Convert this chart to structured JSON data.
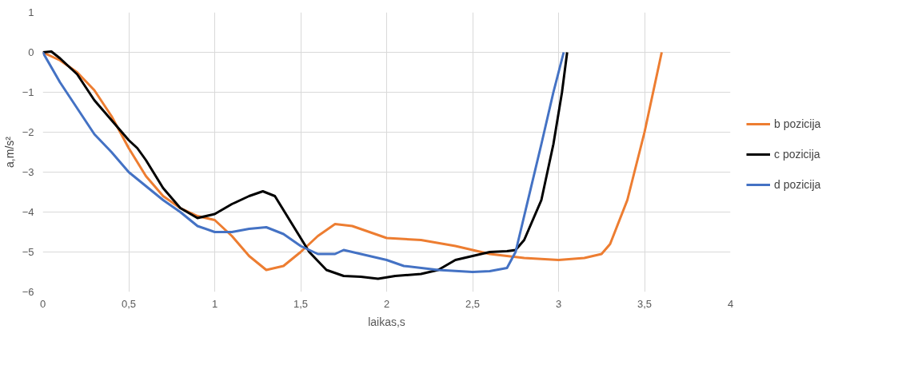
{
  "chart_data": {
    "type": "line",
    "xlabel": "laikas,s",
    "ylabel": "a,m/s²",
    "xlim": [
      0,
      4
    ],
    "xticks": [
      0,
      {
        "value": 0.5,
        "label": "0,5"
      },
      1,
      {
        "value": 1.5,
        "label": "1,5"
      },
      2,
      {
        "value": 2.5,
        "label": "2,5"
      },
      3,
      {
        "value": 3.5,
        "label": "3,5"
      },
      4
    ],
    "ylim": [
      -6,
      1
    ],
    "yticks": [
      -6,
      -5,
      -4,
      -3,
      -2,
      -1,
      0,
      1
    ],
    "grid": true,
    "legend": "right",
    "marker": "none",
    "line_style": "solid",
    "series": [
      {
        "name": "b pozicija",
        "color": "#ed7d31",
        "x": [
          0,
          0.1,
          0.2,
          0.3,
          0.4,
          0.5,
          0.6,
          0.7,
          0.8,
          0.9,
          1.0,
          1.1,
          1.2,
          1.3,
          1.4,
          1.5,
          1.6,
          1.7,
          1.8,
          1.9,
          2.0,
          2.2,
          2.4,
          2.6,
          2.8,
          3.0,
          3.15,
          3.25,
          3.3,
          3.4,
          3.5,
          3.6
        ],
        "values": [
          0,
          -0.2,
          -0.5,
          -0.95,
          -1.6,
          -2.4,
          -3.1,
          -3.6,
          -3.9,
          -4.1,
          -4.2,
          -4.6,
          -5.1,
          -5.45,
          -5.35,
          -5.0,
          -4.6,
          -4.3,
          -4.35,
          -4.5,
          -4.65,
          -4.7,
          -4.85,
          -5.05,
          -5.15,
          -5.2,
          -5.15,
          -5.05,
          -4.8,
          -3.7,
          -2.0,
          0
        ]
      },
      {
        "name": "c pozicija",
        "color": "#000000",
        "x": [
          0,
          0.05,
          0.1,
          0.2,
          0.3,
          0.4,
          0.5,
          0.55,
          0.6,
          0.7,
          0.8,
          0.9,
          1.0,
          1.1,
          1.2,
          1.28,
          1.35,
          1.45,
          1.55,
          1.65,
          1.75,
          1.85,
          1.95,
          2.05,
          2.2,
          2.3,
          2.4,
          2.5,
          2.6,
          2.7,
          2.75,
          2.8,
          2.9,
          2.97,
          3.02,
          3.05
        ],
        "values": [
          0,
          0.02,
          -0.15,
          -0.55,
          -1.2,
          -1.7,
          -2.2,
          -2.4,
          -2.7,
          -3.4,
          -3.9,
          -4.15,
          -4.05,
          -3.8,
          -3.6,
          -3.48,
          -3.6,
          -4.3,
          -5.0,
          -5.45,
          -5.6,
          -5.62,
          -5.67,
          -5.6,
          -5.55,
          -5.45,
          -5.2,
          -5.1,
          -5.0,
          -4.98,
          -4.95,
          -4.7,
          -3.7,
          -2.3,
          -1.0,
          0
        ]
      },
      {
        "name": "d pozicija",
        "color": "#4472c4",
        "x": [
          0,
          0.1,
          0.2,
          0.3,
          0.4,
          0.5,
          0.6,
          0.7,
          0.8,
          0.9,
          1.0,
          1.1,
          1.2,
          1.3,
          1.4,
          1.5,
          1.6,
          1.7,
          1.75,
          1.85,
          2.0,
          2.1,
          2.3,
          2.5,
          2.6,
          2.7,
          2.75,
          2.8,
          2.9,
          2.97,
          3.03
        ],
        "values": [
          0,
          -0.75,
          -1.4,
          -2.05,
          -2.5,
          -3.0,
          -3.35,
          -3.7,
          -4.0,
          -4.35,
          -4.5,
          -4.5,
          -4.42,
          -4.38,
          -4.55,
          -4.85,
          -5.05,
          -5.05,
          -4.95,
          -5.05,
          -5.2,
          -5.35,
          -5.45,
          -5.5,
          -5.48,
          -5.4,
          -5.0,
          -4.1,
          -2.3,
          -1.0,
          0
        ]
      }
    ]
  }
}
